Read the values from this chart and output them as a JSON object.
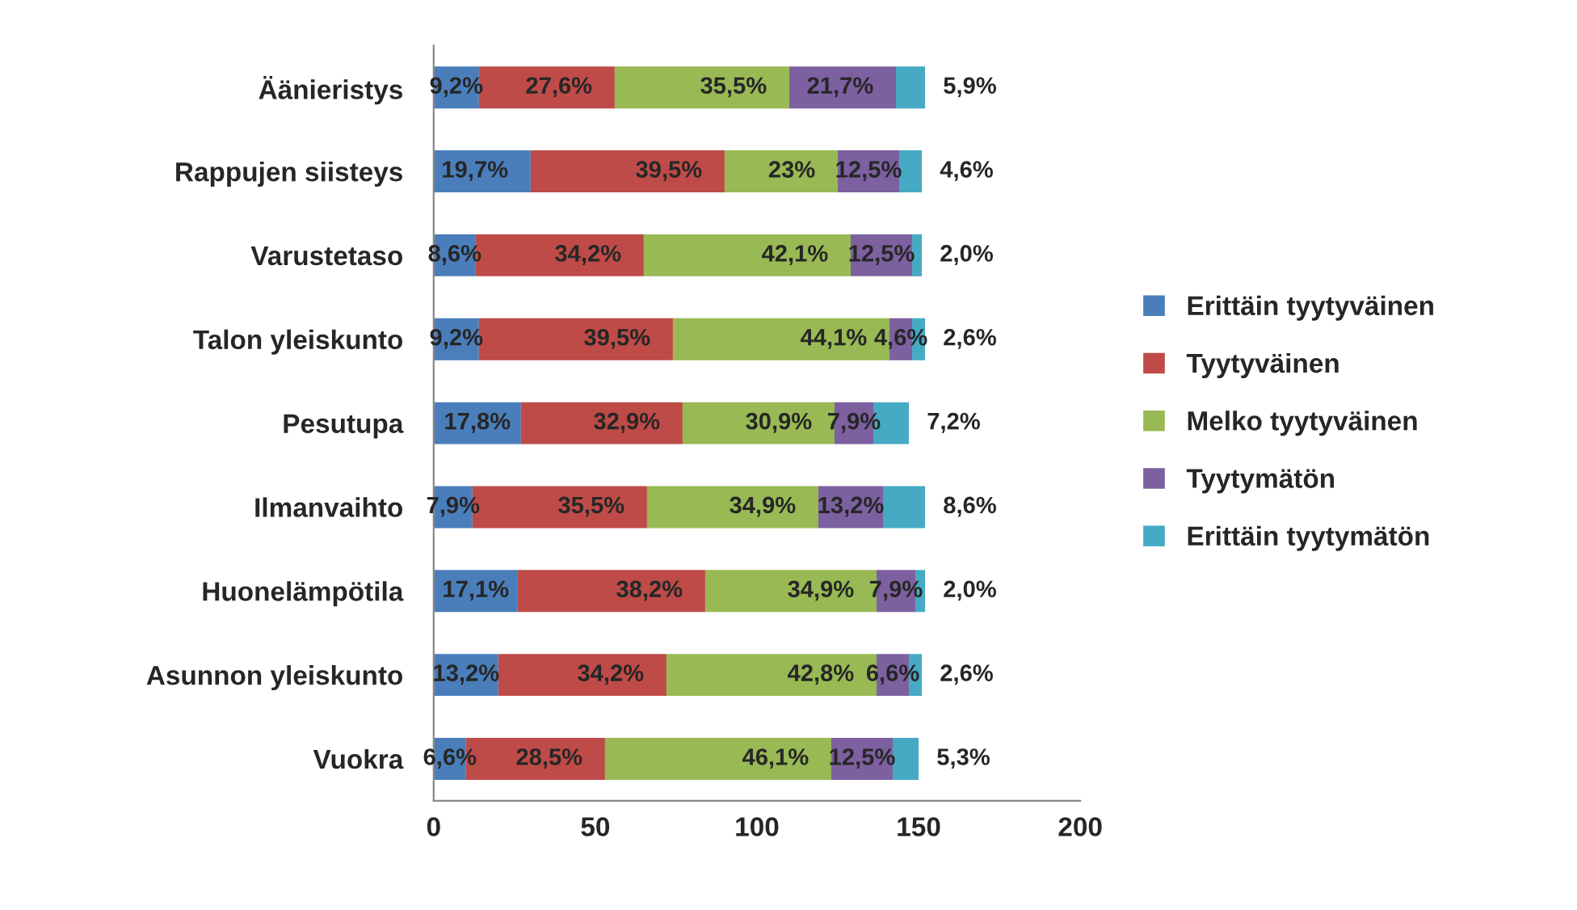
{
  "chart_data": {
    "type": "bar",
    "orientation": "horizontal",
    "stacked": true,
    "categories": [
      "Äänieristys",
      "Rappujen siisteys",
      "Varustetaso",
      "Talon yleiskunto",
      "Pesutupa",
      "Ilmanvaihto",
      "Huonelämpötila",
      "Asunnon yleiskunto",
      "Vuokra"
    ],
    "series": [
      {
        "name": "Erittäin tyytyväinen",
        "color": "#4a7ebb",
        "values": [
          14,
          30,
          13,
          14,
          27,
          12,
          26,
          20,
          10
        ]
      },
      {
        "name": "Tyytyväinen",
        "color": "#be4b48",
        "values": [
          42,
          60,
          52,
          60,
          50,
          54,
          58,
          52,
          43
        ]
      },
      {
        "name": "Melko tyytyväinen",
        "color": "#98b954",
        "values": [
          54,
          35,
          64,
          67,
          47,
          53,
          53,
          65,
          70
        ]
      },
      {
        "name": "Tyytymätön",
        "color": "#7d60a0",
        "values": [
          33,
          19,
          19,
          7,
          12,
          20,
          12,
          10,
          19
        ]
      },
      {
        "name": "Erittäin tyytymätön",
        "color": "#46aac5",
        "values": [
          9,
          7,
          3,
          4,
          11,
          13,
          3,
          4,
          8
        ]
      }
    ],
    "annotations": [
      {
        "text": "9,2%",
        "x": 14,
        "y": "Äänieristys"
      },
      {
        "text": "27,6%",
        "x": 56,
        "y": "Äänieristys"
      },
      {
        "text": "35,5%",
        "x": 110,
        "y": "Äänieristys"
      },
      {
        "text": "21,7%",
        "x": 143,
        "y": "Äänieristys"
      },
      {
        "text": "5,9%",
        "x": 152,
        "y": "Äänieristys"
      },
      {
        "text": "19,7%",
        "x": 30,
        "y": "Rappujen siisteys"
      },
      {
        "text": "39,5%",
        "x": 90,
        "y": "Rappujen siisteys"
      },
      {
        "text": "23%",
        "x": 125,
        "y": "Rappujen siisteys"
      },
      {
        "text": "12,5%",
        "x": 144,
        "y": "Rappujen siisteys"
      },
      {
        "text": "4,6%",
        "x": 151,
        "y": "Rappujen siisteys"
      },
      {
        "text": "8,6%",
        "x": 13,
        "y": "Varustetaso"
      },
      {
        "text": "34,2%",
        "x": 65,
        "y": "Varustetaso"
      },
      {
        "text": "42,1%",
        "x": 129,
        "y": "Varustetaso"
      },
      {
        "text": "12,5%",
        "x": 148,
        "y": "Varustetaso"
      },
      {
        "text": "2,0%",
        "x": 151,
        "y": "Varustetaso"
      },
      {
        "text": "9,2%",
        "x": 14,
        "y": "Talon yleiskunto"
      },
      {
        "text": "39,5%",
        "x": 74,
        "y": "Talon yleiskunto"
      },
      {
        "text": "44,1%",
        "x": 141,
        "y": "Talon yleiskunto"
      },
      {
        "text": "4,6%",
        "x": 148,
        "y": "Talon yleiskunto"
      },
      {
        "text": "2,6%",
        "x": 152,
        "y": "Talon yleiskunto"
      },
      {
        "text": "17,8%",
        "x": 27,
        "y": "Pesutupa"
      },
      {
        "text": "32,9%",
        "x": 77,
        "y": "Pesutupa"
      },
      {
        "text": "30,9%",
        "x": 124,
        "y": "Pesutupa"
      },
      {
        "text": "7,9%",
        "x": 136,
        "y": "Pesutupa"
      },
      {
        "text": "7,2%",
        "x": 147,
        "y": "Pesutupa"
      },
      {
        "text": "7,9%",
        "x": 12,
        "y": "Ilmanvaihto"
      },
      {
        "text": "35,5%",
        "x": 66,
        "y": "Ilmanvaihto"
      },
      {
        "text": "34,9%",
        "x": 119,
        "y": "Ilmanvaihto"
      },
      {
        "text": "13,2%",
        "x": 139,
        "y": "Ilmanvaihto"
      },
      {
        "text": "8,6%",
        "x": 152,
        "y": "Ilmanvaihto"
      },
      {
        "text": "17,1%",
        "x": 26,
        "y": "Huonelämpötila"
      },
      {
        "text": "38,2%",
        "x": 84,
        "y": "Huonelämpötila"
      },
      {
        "text": "34,9%",
        "x": 137,
        "y": "Huonelämpötila"
      },
      {
        "text": "7,9%",
        "x": 149,
        "y": "Huonelämpötila"
      },
      {
        "text": "2,0%",
        "x": 152,
        "y": "Huonelämpötila"
      },
      {
        "text": "13,2%",
        "x": 20,
        "y": "Asunnon yleiskunto"
      },
      {
        "text": "34,2%",
        "x": 72,
        "y": "Asunnon yleiskunto"
      },
      {
        "text": "42,8%",
        "x": 137,
        "y": "Asunnon yleiskunto"
      },
      {
        "text": "6,6%",
        "x": 147,
        "y": "Asunnon yleiskunto"
      },
      {
        "text": "2,6%",
        "x": 151,
        "y": "Asunnon yleiskunto"
      },
      {
        "text": "6,6%",
        "x": 10,
        "y": "Vuokra"
      },
      {
        "text": "28,5%",
        "x": 53,
        "y": "Vuokra"
      },
      {
        "text": "46,1%",
        "x": 123,
        "y": "Vuokra"
      },
      {
        "text": "12,5%",
        "x": 142,
        "y": "Vuokra"
      },
      {
        "text": "5,3%",
        "x": 150,
        "y": "Vuokra"
      }
    ],
    "xlim": [
      0,
      200
    ],
    "xticks": [
      0,
      50,
      100,
      150,
      200
    ],
    "grid": false,
    "legend": "right"
  }
}
